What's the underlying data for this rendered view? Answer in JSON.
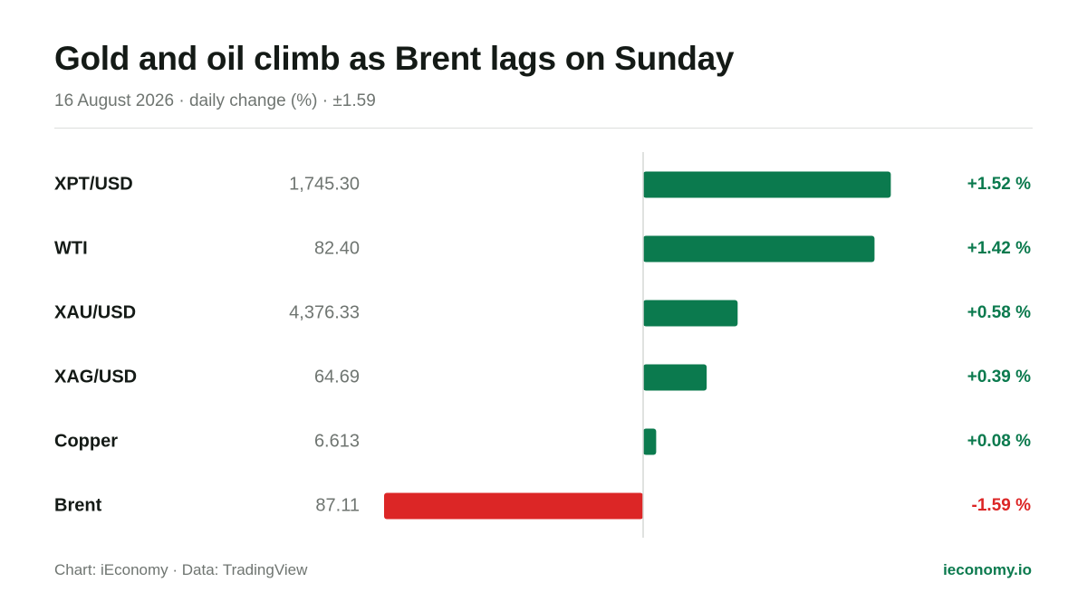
{
  "header": {
    "title": "Gold and oil climb as Brent lags on Sunday",
    "subtitle": "16 August 2026 · daily change (%) · ±1.59"
  },
  "footer": {
    "source": "Chart: iEconomy · Data: TradingView",
    "brand": "ieconomy.io"
  },
  "colors": {
    "positive": "#0b7a4e",
    "negative": "#dc2626",
    "axis": "#d5d8d6"
  },
  "chart_data": {
    "type": "bar",
    "orientation": "horizontal",
    "xlim": [
      -1.59,
      1.59
    ],
    "grid": false,
    "categories": [
      "XPT/USD",
      "WTI",
      "XAU/USD",
      "XAG/USD",
      "Copper",
      "Brent"
    ],
    "prices": [
      "1,745.30",
      "82.40",
      "4,376.33",
      "64.69",
      "6.613",
      "87.11"
    ],
    "values": [
      1.52,
      1.42,
      0.58,
      0.39,
      0.08,
      -1.59
    ],
    "value_labels": [
      "+1.52 %",
      "+1.42 %",
      "+0.58 %",
      "+0.39 %",
      "+0.08 %",
      "-1.59 %"
    ]
  }
}
